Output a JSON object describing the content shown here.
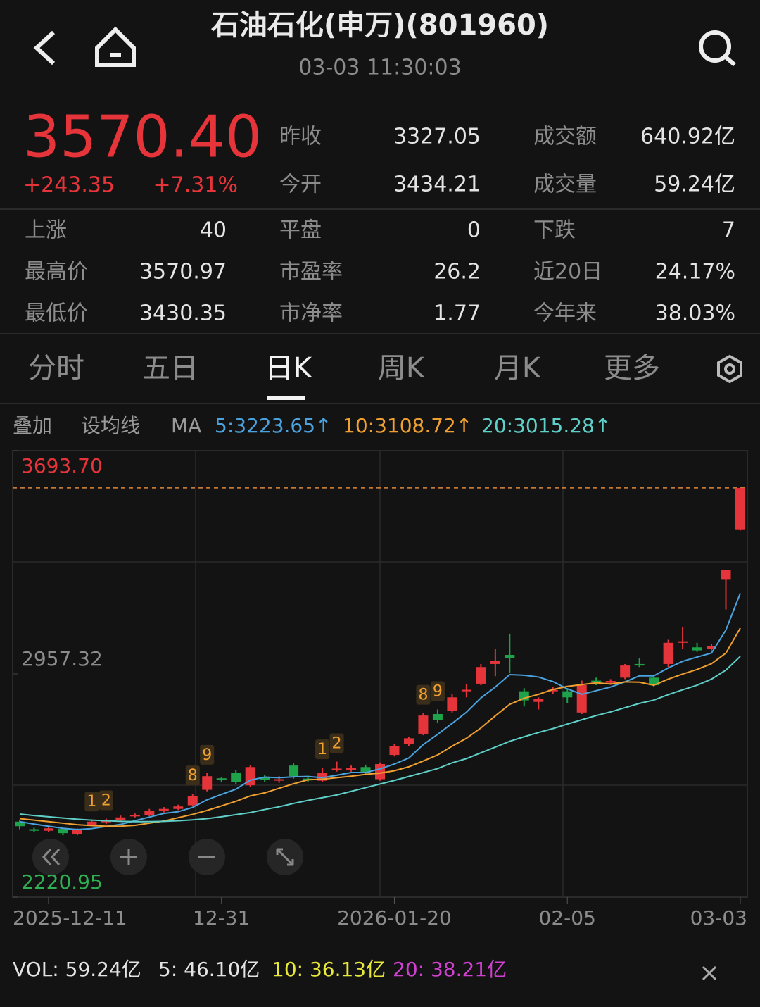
{
  "header": {
    "title": "石油石化(申万)(801960)",
    "time": "03-03 11:30:03"
  },
  "quote": {
    "price": "3570.40",
    "change": "+243.35",
    "change_pct": "+7.31%",
    "stats_top": [
      [
        "昨收",
        "3327.05"
      ],
      [
        "成交额",
        "640.92亿"
      ],
      [
        "今开",
        "3434.21"
      ],
      [
        "成交量",
        "59.24亿"
      ]
    ],
    "stats_bottom": [
      [
        "上涨",
        "40"
      ],
      [
        "平盘",
        "0"
      ],
      [
        "下跌",
        "7"
      ],
      [
        "最高价",
        "3570.97"
      ],
      [
        "市盈率",
        "26.2"
      ],
      [
        "近20日",
        "24.17%"
      ],
      [
        "最低价",
        "3430.35"
      ],
      [
        "市净率",
        "1.77"
      ],
      [
        "今年来",
        "38.03%"
      ]
    ]
  },
  "tabs": [
    "分时",
    "五日",
    "日K",
    "周K",
    "月K",
    "更多"
  ],
  "toolbar": [
    "叠加",
    "设均线",
    "MA"
  ],
  "volume": [
    "VOL: 59.24亿",
    "5: 46.10亿",
    "10: 36.13亿",
    "20: 38.21亿"
  ],
  "chart_data": {
    "type": "candlestick",
    "categories": [
      null,
      null,
      "2025-12-11",
      null,
      null,
      null,
      null,
      null,
      null,
      null,
      null,
      null,
      null,
      null,
      "12-31",
      null,
      null,
      null,
      null,
      null,
      null,
      null,
      null,
      null,
      null,
      null,
      "2026-01-20",
      null,
      null,
      null,
      null,
      null,
      null,
      null,
      null,
      null,
      null,
      null,
      "02-05",
      null,
      null,
      null,
      null,
      null,
      null,
      null,
      null,
      null,
      null,
      null,
      "03-03"
    ],
    "open": [
      2470,
      2445,
      2440,
      2446,
      2430,
      2460,
      2468,
      2474,
      2488,
      2492,
      2505,
      2512,
      2524,
      2575,
      2613,
      2630,
      2590,
      2618,
      2605,
      2655,
      2612,
      2605,
      2640,
      2640,
      2650,
      2610,
      2690,
      2725,
      2760,
      2825,
      2835,
      2900,
      2925,
      2990,
      3020,
      2900,
      2865,
      2900,
      2900,
      2830,
      2935,
      2928,
      2945,
      2990,
      2945,
      2990,
      3060,
      3045,
      3040,
      3270,
      3434.21
    ],
    "high": [
      2475,
      2450,
      2452,
      2450,
      2448,
      2476,
      2480,
      2490,
      2497,
      2512,
      2518,
      2526,
      2562,
      2630,
      2618,
      2640,
      2655,
      2625,
      2620,
      2662,
      2616,
      2648,
      2668,
      2655,
      2658,
      2665,
      2725,
      2750,
      2828,
      2840,
      2890,
      2925,
      2990,
      3040,
      3090,
      2910,
      2880,
      2915,
      2910,
      2935,
      2945,
      2940,
      2990,
      3010,
      2950,
      3070,
      3113,
      3060,
      3055,
      3300,
      3570.97
    ],
    "low": [
      2445,
      2435,
      2436,
      2425,
      2425,
      2456,
      2462,
      2470,
      2484,
      2488,
      2500,
      2508,
      2520,
      2570,
      2600,
      2595,
      2585,
      2600,
      2598,
      2612,
      2600,
      2600,
      2635,
      2635,
      2625,
      2605,
      2685,
      2720,
      2755,
      2795,
      2830,
      2880,
      2920,
      2950,
      2960,
      2850,
      2840,
      2890,
      2860,
      2825,
      2920,
      2922,
      2940,
      2980,
      2915,
      2980,
      3040,
      3030,
      3035,
      3170,
      3430.35
    ],
    "close": [
      2455,
      2440,
      2448,
      2432,
      2445,
      2470,
      2474,
      2484,
      2492,
      2505,
      2512,
      2520,
      2555,
      2620,
      2608,
      2600,
      2650,
      2608,
      2610,
      2620,
      2608,
      2630,
      2645,
      2646,
      2630,
      2660,
      2720,
      2745,
      2820,
      2805,
      2880,
      2905,
      2980,
      3000,
      3010,
      2870,
      2875,
      2905,
      2880,
      2920,
      2930,
      2934,
      2985,
      2985,
      2920,
      3060,
      3065,
      3035,
      3050,
      3300,
      3570.4
    ],
    "up_color": "#e5343a",
    "down_color": "#1fa34a",
    "annotations": [
      null,
      null,
      null,
      null,
      null,
      "1",
      "2",
      null,
      null,
      null,
      null,
      null,
      "8",
      "9",
      null,
      null,
      null,
      null,
      null,
      null,
      null,
      "1",
      "2",
      null,
      null,
      null,
      null,
      null,
      "8",
      "9",
      null,
      null,
      null,
      null,
      null,
      null,
      null,
      null,
      null,
      null,
      null,
      null,
      null,
      null,
      null,
      null,
      null,
      null,
      null,
      null,
      null
    ],
    "series": [
      {
        "name": "5:3223.65↑",
        "color": "#4aa3df",
        "values": [
          2470,
          2462,
          2455,
          2448,
          2444,
          2447,
          2454,
          2461,
          2473,
          2485,
          2497,
          2503,
          2517,
          2542,
          2560,
          2577,
          2607,
          2617,
          2615,
          2618,
          2619,
          2615,
          2623,
          2632,
          2632,
          2644,
          2660,
          2680,
          2724,
          2758,
          2794,
          2831,
          2878,
          2914,
          2955,
          2953,
          2947,
          2932,
          2908,
          2890,
          2902,
          2914,
          2931,
          2951,
          2951,
          2977,
          2999,
          3013,
          3026,
          3102,
          3223.65
        ]
      },
      {
        "name": "10:3108.72↑",
        "color": "#f0a030",
        "values": [
          2480,
          2475,
          2470,
          2465,
          2460,
          2457,
          2455,
          2455,
          2458,
          2465,
          2472,
          2483,
          2494,
          2507,
          2522,
          2537,
          2555,
          2565,
          2580,
          2595,
          2608,
          2610,
          2615,
          2620,
          2626,
          2630,
          2638,
          2651,
          2670,
          2690,
          2719,
          2745,
          2779,
          2819,
          2857,
          2877,
          2890,
          2906,
          2916,
          2922,
          2928,
          2924,
          2931,
          2930,
          2920,
          2940,
          2957,
          2972,
          2991,
          3026,
          3108.72
        ]
      },
      {
        "name": "20:3015.28↑",
        "color": "#5fd0c8",
        "values": [
          2495,
          2490,
          2486,
          2482,
          2478,
          2475,
          2473,
          2471,
          2470,
          2470,
          2471,
          2473,
          2476,
          2480,
          2486,
          2493,
          2500,
          2510,
          2519,
          2530,
          2540,
          2549,
          2558,
          2570,
          2582,
          2594,
          2606,
          2619,
          2632,
          2645,
          2664,
          2678,
          2697,
          2716,
          2735,
          2750,
          2764,
          2777,
          2792,
          2806,
          2820,
          2832,
          2846,
          2860,
          2871,
          2889,
          2905,
          2920,
          2940,
          2970,
          3015.28
        ]
      }
    ],
    "ylim": [
      2220.95,
      3693.7
    ],
    "yticks": [
      {
        "value": 3693.7,
        "label": "3693.70"
      },
      2957.32,
      2220.95
    ],
    "ytick_colors": [
      "#e5343a",
      "#8c8c8c",
      "#2fb052"
    ]
  }
}
